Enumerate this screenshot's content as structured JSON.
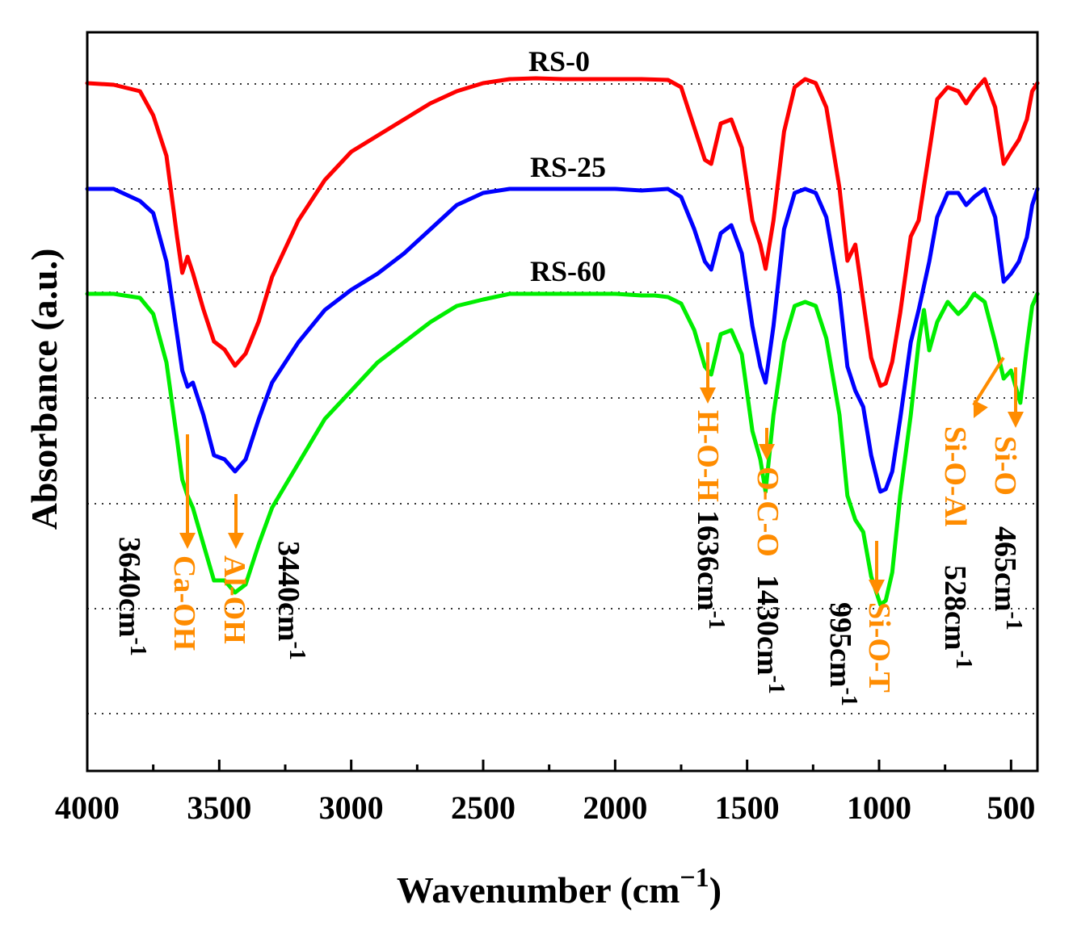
{
  "chart_data": {
    "type": "line",
    "xlabel": "Wavenumber (cm",
    "xlabel_sup": "−1",
    "xlabel_close": ")",
    "ylabel": "Absorbance (a.u.)",
    "xlim": [
      4000,
      400
    ],
    "x_reversed": true,
    "x_ticks": [
      4000,
      3500,
      3000,
      2500,
      2000,
      1500,
      1000,
      500
    ],
    "y_ticks_shown": false,
    "grid": "horizontal dotted",
    "colors": {
      "RS-0": "#ff0000",
      "RS-25": "#0000ff",
      "RS-60": "#00ee00",
      "annotation": "#ff8c00",
      "text": "#000000"
    },
    "series": [
      {
        "name": "RS-0",
        "color": "#ff0000",
        "points": [
          [
            4000,
            3.9
          ],
          [
            3900,
            3.88
          ],
          [
            3800,
            3.8
          ],
          [
            3750,
            3.5
          ],
          [
            3700,
            3.0
          ],
          [
            3660,
            2.0
          ],
          [
            3640,
            1.55
          ],
          [
            3620,
            1.75
          ],
          [
            3600,
            1.55
          ],
          [
            3560,
            1.1
          ],
          [
            3520,
            0.7
          ],
          [
            3480,
            0.6
          ],
          [
            3440,
            0.4
          ],
          [
            3400,
            0.55
          ],
          [
            3350,
            0.95
          ],
          [
            3300,
            1.5
          ],
          [
            3200,
            2.2
          ],
          [
            3100,
            2.7
          ],
          [
            3000,
            3.05
          ],
          [
            2900,
            3.25
          ],
          [
            2800,
            3.45
          ],
          [
            2700,
            3.65
          ],
          [
            2600,
            3.8
          ],
          [
            2500,
            3.9
          ],
          [
            2400,
            3.95
          ],
          [
            2300,
            3.96
          ],
          [
            2200,
            3.95
          ],
          [
            2100,
            3.95
          ],
          [
            2000,
            3.95
          ],
          [
            1900,
            3.95
          ],
          [
            1800,
            3.94
          ],
          [
            1750,
            3.85
          ],
          [
            1700,
            3.35
          ],
          [
            1660,
            2.95
          ],
          [
            1636,
            2.9
          ],
          [
            1600,
            3.4
          ],
          [
            1560,
            3.45
          ],
          [
            1520,
            3.1
          ],
          [
            1480,
            2.2
          ],
          [
            1450,
            1.9
          ],
          [
            1430,
            1.6
          ],
          [
            1400,
            2.2
          ],
          [
            1360,
            3.3
          ],
          [
            1320,
            3.85
          ],
          [
            1280,
            3.95
          ],
          [
            1240,
            3.9
          ],
          [
            1200,
            3.6
          ],
          [
            1150,
            2.6
          ],
          [
            1120,
            1.7
          ],
          [
            1090,
            1.9
          ],
          [
            1060,
            1.2
          ],
          [
            1030,
            0.5
          ],
          [
            1000,
            0.2
          ],
          [
            995,
            0.15
          ],
          [
            975,
            0.18
          ],
          [
            950,
            0.45
          ],
          [
            920,
            1.05
          ],
          [
            880,
            2.0
          ],
          [
            850,
            2.2
          ],
          [
            810,
            3.05
          ],
          [
            780,
            3.7
          ],
          [
            740,
            3.85
          ],
          [
            700,
            3.8
          ],
          [
            670,
            3.65
          ],
          [
            640,
            3.8
          ],
          [
            600,
            3.95
          ],
          [
            560,
            3.6
          ],
          [
            528,
            2.9
          ],
          [
            500,
            3.05
          ],
          [
            470,
            3.2
          ],
          [
            440,
            3.45
          ],
          [
            420,
            3.8
          ],
          [
            400,
            3.9
          ]
        ]
      },
      {
        "name": "RS-25",
        "color": "#0000ff",
        "points": [
          [
            4000,
            3.9
          ],
          [
            3900,
            3.9
          ],
          [
            3800,
            3.75
          ],
          [
            3750,
            3.6
          ],
          [
            3700,
            3.0
          ],
          [
            3660,
            2.1
          ],
          [
            3640,
            1.65
          ],
          [
            3620,
            1.45
          ],
          [
            3600,
            1.5
          ],
          [
            3560,
            1.1
          ],
          [
            3520,
            0.6
          ],
          [
            3480,
            0.55
          ],
          [
            3440,
            0.4
          ],
          [
            3400,
            0.55
          ],
          [
            3350,
            1.05
          ],
          [
            3300,
            1.5
          ],
          [
            3200,
            2.0
          ],
          [
            3100,
            2.4
          ],
          [
            3000,
            2.65
          ],
          [
            2900,
            2.85
          ],
          [
            2800,
            3.1
          ],
          [
            2700,
            3.4
          ],
          [
            2600,
            3.7
          ],
          [
            2500,
            3.85
          ],
          [
            2400,
            3.9
          ],
          [
            2300,
            3.9
          ],
          [
            2200,
            3.9
          ],
          [
            2100,
            3.9
          ],
          [
            2000,
            3.9
          ],
          [
            1900,
            3.88
          ],
          [
            1800,
            3.9
          ],
          [
            1750,
            3.8
          ],
          [
            1700,
            3.4
          ],
          [
            1660,
            3.0
          ],
          [
            1636,
            2.9
          ],
          [
            1600,
            3.35
          ],
          [
            1560,
            3.45
          ],
          [
            1520,
            3.1
          ],
          [
            1480,
            2.2
          ],
          [
            1450,
            1.7
          ],
          [
            1430,
            1.5
          ],
          [
            1400,
            2.2
          ],
          [
            1360,
            3.4
          ],
          [
            1320,
            3.85
          ],
          [
            1280,
            3.9
          ],
          [
            1240,
            3.85
          ],
          [
            1200,
            3.55
          ],
          [
            1150,
            2.6
          ],
          [
            1120,
            1.7
          ],
          [
            1090,
            1.4
          ],
          [
            1060,
            1.2
          ],
          [
            1030,
            0.6
          ],
          [
            1000,
            0.2
          ],
          [
            995,
            0.15
          ],
          [
            975,
            0.18
          ],
          [
            950,
            0.4
          ],
          [
            920,
            1.05
          ],
          [
            880,
            2.0
          ],
          [
            850,
            2.4
          ],
          [
            810,
            3.0
          ],
          [
            780,
            3.55
          ],
          [
            740,
            3.85
          ],
          [
            700,
            3.85
          ],
          [
            670,
            3.7
          ],
          [
            640,
            3.8
          ],
          [
            600,
            3.9
          ],
          [
            560,
            3.55
          ],
          [
            528,
            2.75
          ],
          [
            500,
            2.85
          ],
          [
            470,
            3.0
          ],
          [
            440,
            3.3
          ],
          [
            420,
            3.7
          ],
          [
            400,
            3.9
          ]
        ]
      },
      {
        "name": "RS-60",
        "color": "#00ee00",
        "points": [
          [
            4000,
            3.9
          ],
          [
            3900,
            3.9
          ],
          [
            3800,
            3.85
          ],
          [
            3750,
            3.65
          ],
          [
            3700,
            3.05
          ],
          [
            3660,
            2.1
          ],
          [
            3640,
            1.6
          ],
          [
            3620,
            1.4
          ],
          [
            3600,
            1.25
          ],
          [
            3560,
            0.8
          ],
          [
            3520,
            0.35
          ],
          [
            3480,
            0.35
          ],
          [
            3440,
            0.2
          ],
          [
            3400,
            0.3
          ],
          [
            3350,
            0.8
          ],
          [
            3300,
            1.25
          ],
          [
            3200,
            1.8
          ],
          [
            3100,
            2.35
          ],
          [
            3000,
            2.7
          ],
          [
            2900,
            3.05
          ],
          [
            2800,
            3.3
          ],
          [
            2700,
            3.55
          ],
          [
            2600,
            3.75
          ],
          [
            2500,
            3.83
          ],
          [
            2400,
            3.9
          ],
          [
            2300,
            3.9
          ],
          [
            2200,
            3.9
          ],
          [
            2100,
            3.9
          ],
          [
            2000,
            3.9
          ],
          [
            1900,
            3.88
          ],
          [
            1850,
            3.88
          ],
          [
            1800,
            3.86
          ],
          [
            1750,
            3.78
          ],
          [
            1700,
            3.45
          ],
          [
            1660,
            3.0
          ],
          [
            1636,
            2.9
          ],
          [
            1600,
            3.4
          ],
          [
            1560,
            3.45
          ],
          [
            1520,
            3.15
          ],
          [
            1480,
            2.2
          ],
          [
            1450,
            1.85
          ],
          [
            1430,
            1.45
          ],
          [
            1400,
            2.4
          ],
          [
            1360,
            3.3
          ],
          [
            1320,
            3.75
          ],
          [
            1280,
            3.8
          ],
          [
            1240,
            3.75
          ],
          [
            1200,
            3.35
          ],
          [
            1150,
            2.4
          ],
          [
            1120,
            1.4
          ],
          [
            1090,
            1.1
          ],
          [
            1060,
            0.95
          ],
          [
            1030,
            0.4
          ],
          [
            1000,
            0.1
          ],
          [
            995,
            0.05
          ],
          [
            975,
            0.1
          ],
          [
            950,
            0.45
          ],
          [
            920,
            1.4
          ],
          [
            880,
            2.4
          ],
          [
            850,
            3.3
          ],
          [
            830,
            3.7
          ],
          [
            810,
            3.2
          ],
          [
            780,
            3.55
          ],
          [
            740,
            3.8
          ],
          [
            700,
            3.65
          ],
          [
            670,
            3.75
          ],
          [
            640,
            3.9
          ],
          [
            600,
            3.8
          ],
          [
            560,
            3.3
          ],
          [
            528,
            2.85
          ],
          [
            500,
            2.95
          ],
          [
            465,
            2.55
          ],
          [
            440,
            3.25
          ],
          [
            420,
            3.75
          ],
          [
            400,
            3.9
          ]
        ]
      }
    ],
    "annotations": [
      {
        "group": "Ca-OH",
        "wavenumber": "3640cm",
        "sup": "-1"
      },
      {
        "group": "Al-OH",
        "wavenumber": "3440cm",
        "sup": "-1"
      },
      {
        "group": "H-O-H",
        "wavenumber": "1636cm",
        "sup": "-1"
      },
      {
        "group": "O-C-O",
        "wavenumber": "1430cm",
        "sup": "-1"
      },
      {
        "group": "Si-O-T",
        "wavenumber": "995cm",
        "sup": "-1"
      },
      {
        "group": "Si-O-Al",
        "wavenumber": "528cm",
        "sup": "-1"
      },
      {
        "group": "Si-O",
        "wavenumber": "465cm",
        "sup": "-1"
      }
    ]
  }
}
